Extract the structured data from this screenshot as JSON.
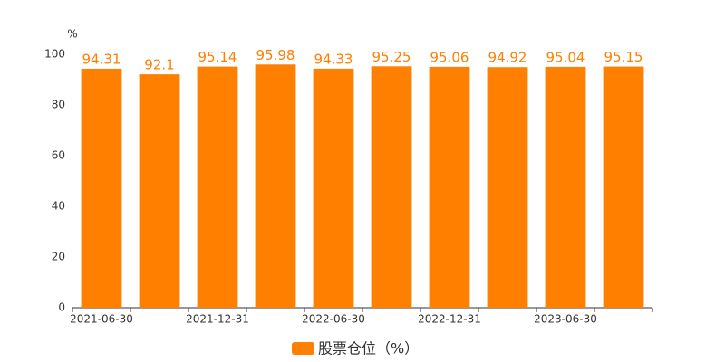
{
  "chart_data": {
    "type": "bar",
    "y_label": "%",
    "categories": [
      "2021-06-30",
      null,
      "2021-12-31",
      null,
      "2022-06-30",
      null,
      "2022-12-31",
      null,
      "2023-06-30",
      null
    ],
    "series": [
      {
        "name": "股票仓位（%）",
        "color": "#ff7f00",
        "values": [
          94.31,
          92.1,
          95.14,
          95.98,
          94.33,
          95.25,
          95.06,
          94.92,
          95.04,
          95.15
        ]
      }
    ],
    "ylim": [
      0,
      100
    ],
    "yticks": [
      0,
      20,
      40,
      60,
      80,
      100
    ],
    "grid": false
  }
}
